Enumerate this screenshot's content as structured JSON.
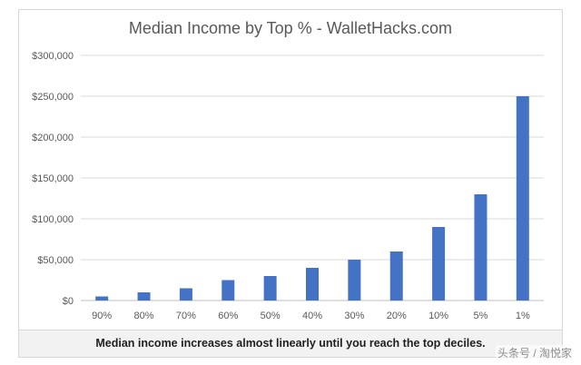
{
  "chart_data": {
    "type": "bar",
    "title": "Median Income by Top % - WalletHacks.com",
    "categories": [
      "90%",
      "80%",
      "70%",
      "60%",
      "50%",
      "40%",
      "30%",
      "20%",
      "10%",
      "5%",
      "1%"
    ],
    "values": [
      5000,
      10000,
      15000,
      25000,
      30000,
      40000,
      50000,
      60000,
      90000,
      130000,
      250000
    ],
    "ylim": [
      0,
      300000
    ],
    "yticks": [
      "$0",
      "$50,000",
      "$100,000",
      "$150,000",
      "$200,000",
      "$250,000",
      "$300,000"
    ],
    "grid": true,
    "bar_color": "#4472c4"
  },
  "caption": "Median income increases almost linearly until you reach the top deciles.",
  "watermark": "头条号 / 淘悦家"
}
